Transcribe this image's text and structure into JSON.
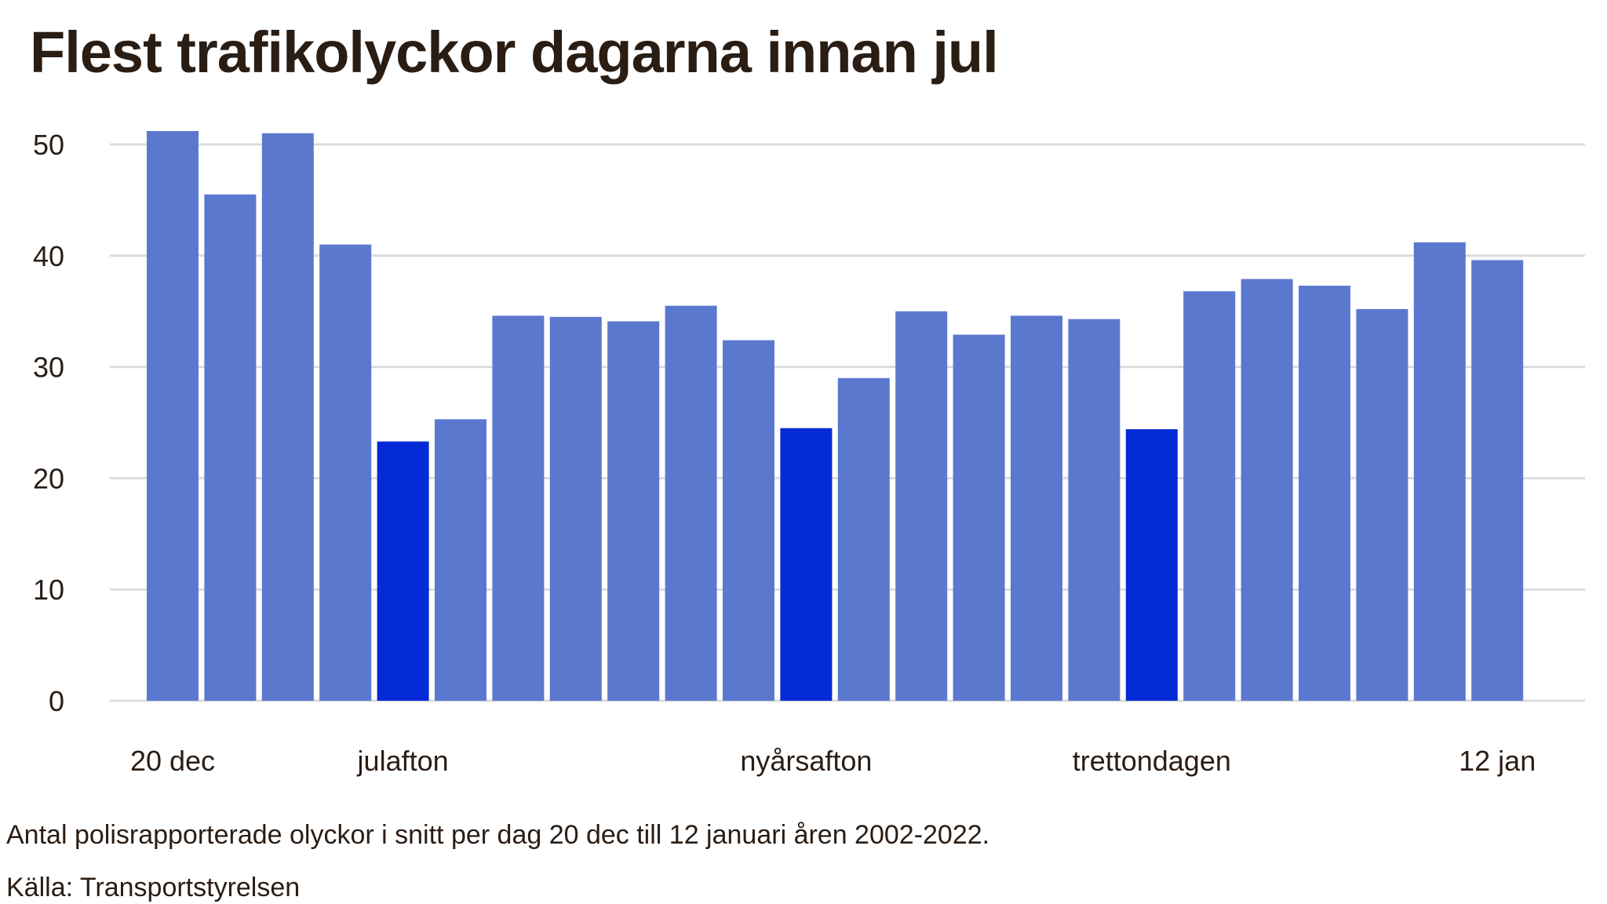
{
  "title": "Flest trafikolyckor dagarna innan jul",
  "note": "Antal polisrapporterade olyckor i snitt per dag 20 dec till 12 januari åren 2002-2022.",
  "source": "Källa: Transportstyrelsen",
  "colors": {
    "normal": "#5b78cf",
    "highlight": "#052bd6",
    "grid": "#dcdcdc",
    "text": "#2a1d14"
  },
  "chart_data": {
    "type": "bar",
    "categories": [
      "20 dec",
      "",
      "",
      "",
      "julafton",
      "",
      "",
      "",
      "",
      "",
      "",
      "nyårsafton",
      "",
      "",
      "",
      "",
      "",
      "trettondagen",
      "",
      "",
      "",
      "",
      "",
      "12 jan"
    ],
    "values": [
      51.2,
      45.5,
      51.0,
      41.0,
      23.3,
      25.3,
      34.6,
      34.5,
      34.1,
      35.5,
      32.4,
      24.5,
      29.0,
      35.0,
      32.9,
      34.6,
      34.3,
      24.4,
      36.8,
      37.9,
      37.3,
      35.2,
      41.2,
      39.6
    ],
    "highlighted": [
      false,
      false,
      false,
      false,
      true,
      false,
      false,
      false,
      false,
      false,
      false,
      true,
      false,
      false,
      false,
      false,
      false,
      true,
      false,
      false,
      false,
      false,
      false,
      false
    ],
    "x_tick_labels": [
      "20 dec",
      "julafton",
      "nyårsafton",
      "trettondagen",
      "12 jan"
    ],
    "x_tick_indices": [
      0,
      4,
      11,
      17,
      23
    ],
    "y_ticks": [
      0,
      10,
      20,
      30,
      40,
      50
    ],
    "ylim": [
      0,
      55
    ],
    "xlabel": "",
    "ylabel": "",
    "grid": true,
    "legend": "none"
  }
}
